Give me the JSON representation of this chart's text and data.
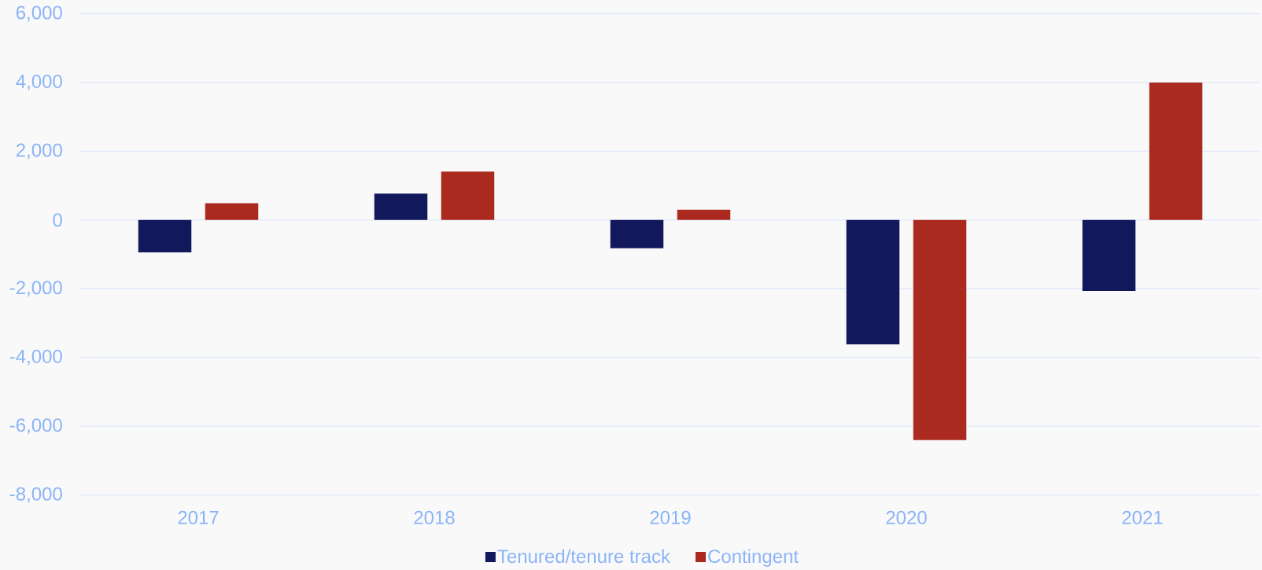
{
  "chart_data": {
    "type": "bar",
    "categories": [
      "2017",
      "2018",
      "2019",
      "2020",
      "2021"
    ],
    "series": [
      {
        "name": "Tenured/tenure track",
        "color": "#12185c",
        "values": [
          -940,
          770,
          -820,
          -3620,
          -2060
        ]
      },
      {
        "name": "Contingent",
        "color": "#ab2a1f",
        "values": [
          490,
          1410,
          300,
          -6400,
          4000
        ]
      }
    ],
    "ylim": [
      -8000,
      6000
    ],
    "yticks": [
      {
        "value": -8000,
        "label": "-8,000"
      },
      {
        "value": -6000,
        "label": "-6,000"
      },
      {
        "value": -4000,
        "label": "-4,000"
      },
      {
        "value": -2000,
        "label": "-2,000"
      },
      0,
      {
        "value": 2000,
        "label": "2,000"
      },
      {
        "value": 4000,
        "label": "4,000"
      },
      {
        "value": 6000,
        "label": "6,000"
      }
    ],
    "grid": "y",
    "legend": "bottom"
  }
}
